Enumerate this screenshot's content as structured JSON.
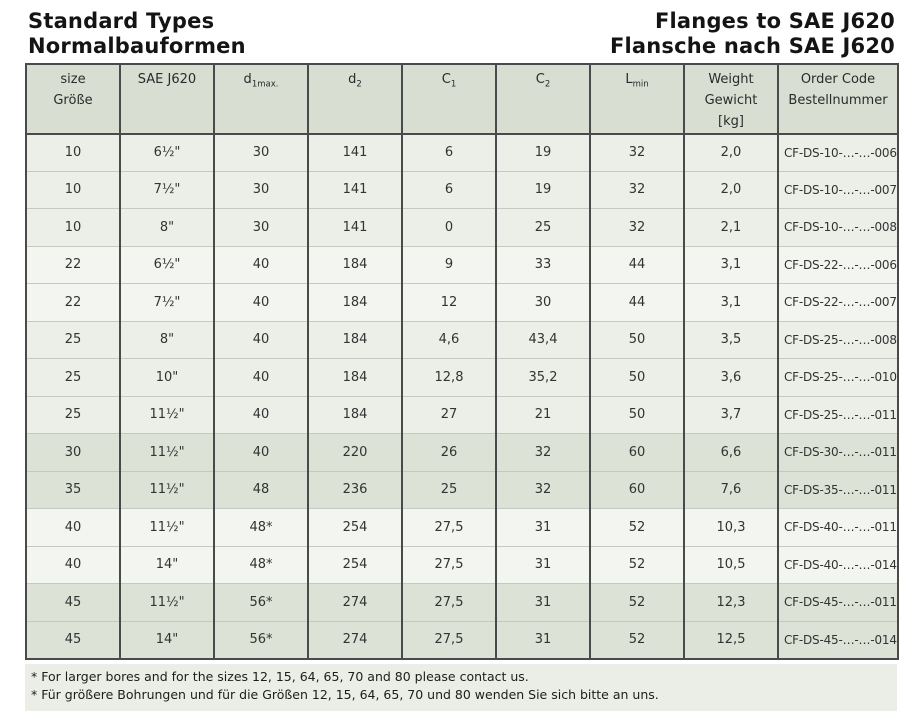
{
  "titles": {
    "left_line1": "Standard Types",
    "left_line2": "Normalbauformen",
    "right_line1": "Flanges to SAE J620",
    "right_line2": "Flansche nach SAE J620"
  },
  "colors": {
    "header_bg": "#d8ded2",
    "band_mid": "#ebefe8",
    "band_light": "#f3f5f0",
    "band_dark": "#dce2d5",
    "footnote_bg": "#eaeee6",
    "border_dark": "#4a4a4a",
    "border_light": "#c5c9c2",
    "text": "#333333",
    "title": "#141414"
  },
  "table": {
    "headers": [
      {
        "lines": [
          "size",
          "Größe"
        ]
      },
      {
        "lines": [
          "SAE J620"
        ]
      },
      {
        "base": "d",
        "sub": "1max."
      },
      {
        "base": "d",
        "sub": "2"
      },
      {
        "base": "C",
        "sub": "1"
      },
      {
        "base": "C",
        "sub": "2"
      },
      {
        "base": "L",
        "sub": "min"
      },
      {
        "lines": [
          "Weight",
          "Gewicht",
          "[kg]"
        ]
      },
      {
        "lines": [
          "Order Code",
          "Bestellnummer"
        ]
      }
    ],
    "rows": [
      {
        "band": "mid",
        "cells": [
          "10",
          "6½\"",
          "30",
          "141",
          "6",
          "19",
          "32",
          "2,0",
          "CF-DS-10-…-…-006"
        ]
      },
      {
        "band": "mid",
        "cells": [
          "10",
          "7½\"",
          "30",
          "141",
          "6",
          "19",
          "32",
          "2,0",
          "CF-DS-10-…-…-007"
        ]
      },
      {
        "band": "mid",
        "cells": [
          "10",
          "8\"",
          "30",
          "141",
          "0",
          "25",
          "32",
          "2,1",
          "CF-DS-10-…-…-008"
        ]
      },
      {
        "band": "light",
        "cells": [
          "22",
          "6½\"",
          "40",
          "184",
          "9",
          "33",
          "44",
          "3,1",
          "CF-DS-22-…-…-006"
        ]
      },
      {
        "band": "light",
        "cells": [
          "22",
          "7½\"",
          "40",
          "184",
          "12",
          "30",
          "44",
          "3,1",
          "CF-DS-22-…-…-007"
        ]
      },
      {
        "band": "mid",
        "cells": [
          "25",
          "8\"",
          "40",
          "184",
          "4,6",
          "43,4",
          "50",
          "3,5",
          "CF-DS-25-…-…-008"
        ]
      },
      {
        "band": "mid",
        "cells": [
          "25",
          "10\"",
          "40",
          "184",
          "12,8",
          "35,2",
          "50",
          "3,6",
          "CF-DS-25-…-…-010"
        ]
      },
      {
        "band": "mid",
        "cells": [
          "25",
          "11½\"",
          "40",
          "184",
          "27",
          "21",
          "50",
          "3,7",
          "CF-DS-25-…-…-011"
        ]
      },
      {
        "band": "dark",
        "cells": [
          "30",
          "11½\"",
          "40",
          "220",
          "26",
          "32",
          "60",
          "6,6",
          "CF-DS-30-…-…-011"
        ]
      },
      {
        "band": "dark",
        "cells": [
          "35",
          "11½\"",
          "48",
          "236",
          "25",
          "32",
          "60",
          "7,6",
          "CF-DS-35-…-…-011"
        ]
      },
      {
        "band": "light",
        "cells": [
          "40",
          "11½\"",
          "48*",
          "254",
          "27,5",
          "31",
          "52",
          "10,3",
          "CF-DS-40-…-…-011"
        ]
      },
      {
        "band": "light",
        "cells": [
          "40",
          "14\"",
          "48*",
          "254",
          "27,5",
          "31",
          "52",
          "10,5",
          "CF-DS-40-…-…-014"
        ]
      },
      {
        "band": "dark",
        "cells": [
          "45",
          "11½\"",
          "56*",
          "274",
          "27,5",
          "31",
          "52",
          "12,3",
          "CF-DS-45-…-…-011"
        ]
      },
      {
        "band": "dark",
        "cells": [
          "45",
          "14\"",
          "56*",
          "274",
          "27,5",
          "31",
          "52",
          "12,5",
          "CF-DS-45-…-…-014"
        ]
      }
    ]
  },
  "footnotes": [
    "* For larger bores and for the sizes 12, 15, 64, 65, 70 and 80 please contact us.",
    "* Für größere Bohrungen und für die Größen 12, 15, 64, 65, 70 und 80 wenden Sie sich bitte an uns."
  ]
}
